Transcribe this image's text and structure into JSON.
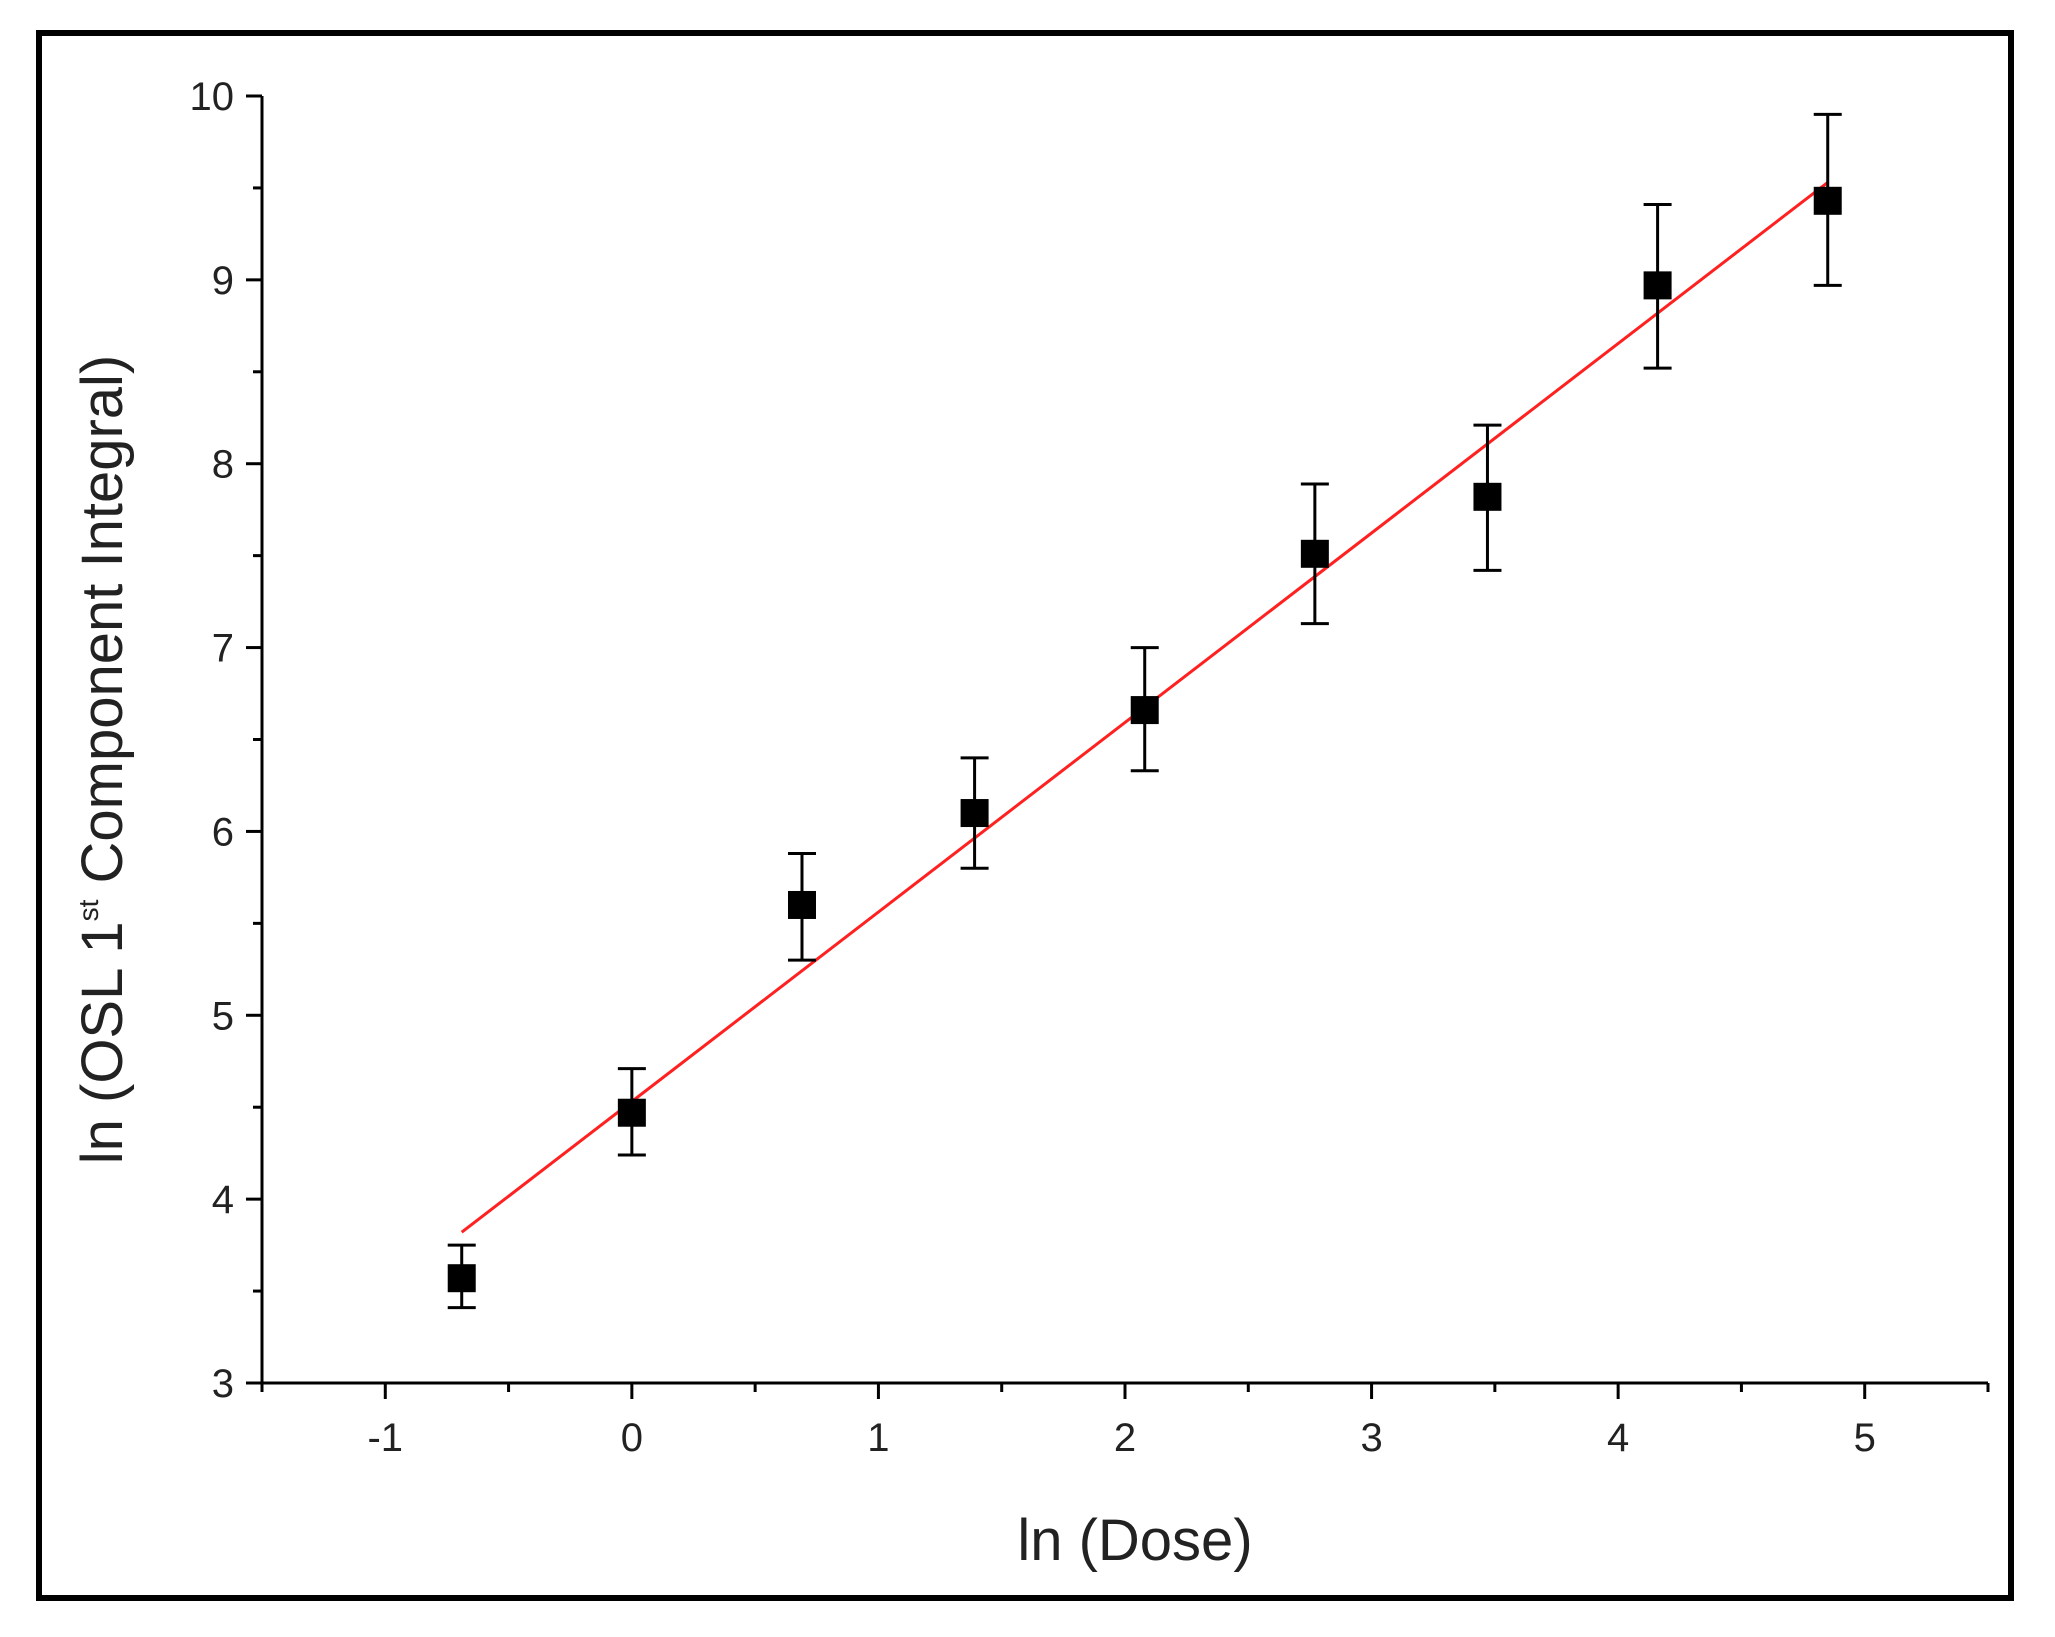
{
  "chart_data": {
    "type": "scatter",
    "xlabel": "ln (Dose)",
    "ylabel_prefix": "ln (OSL 1",
    "ylabel_sup": "st",
    "ylabel_suffix": " Component Integral)",
    "xlim": [
      -1.5,
      5.5
    ],
    "ylim": [
      3,
      10
    ],
    "xticks": [
      -1,
      0,
      1,
      2,
      3,
      4,
      5
    ],
    "xtick_labels": [
      "-1",
      "0",
      "1",
      "2",
      "3",
      "4",
      "5"
    ],
    "yticks": [
      3,
      4,
      5,
      6,
      7,
      8,
      9,
      10
    ],
    "ytick_labels": [
      "3",
      "4",
      "5",
      "6",
      "7",
      "8",
      "9",
      "10"
    ],
    "grid": false,
    "series": [
      {
        "type": "scatter",
        "marker": "square",
        "color": "#000000",
        "x": [
          -0.69,
          0.0,
          0.69,
          1.39,
          2.08,
          2.77,
          3.47,
          4.16,
          4.85
        ],
        "y": [
          3.57,
          4.47,
          5.6,
          6.1,
          6.66,
          7.51,
          7.82,
          8.97,
          9.43
        ],
        "error_low": [
          3.41,
          4.24,
          5.3,
          5.8,
          6.33,
          7.13,
          7.42,
          8.52,
          8.97
        ],
        "error_high": [
          3.75,
          4.71,
          5.88,
          6.4,
          7.0,
          7.89,
          8.21,
          9.41,
          9.9
        ]
      },
      {
        "type": "line",
        "color": "#ff2020",
        "x": [
          -0.69,
          4.85
        ],
        "y": [
          3.82,
          9.53
        ]
      }
    ]
  }
}
